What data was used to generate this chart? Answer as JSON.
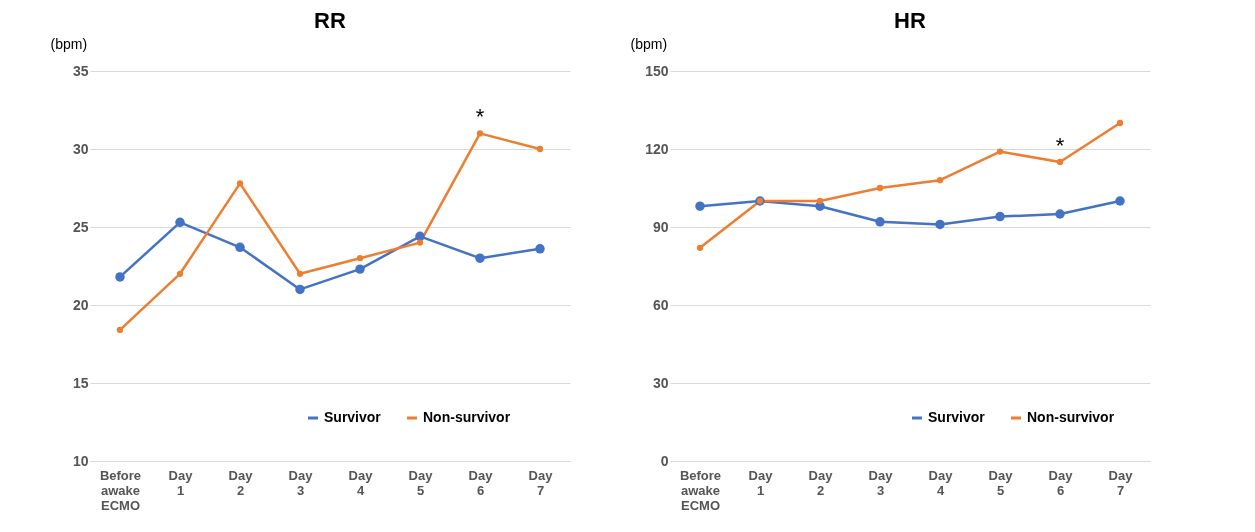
{
  "chart_data": [
    {
      "type": "line",
      "title": "RR",
      "ylabel": "(bpm)",
      "categories": [
        "Before awake ECMO",
        "Day 1",
        "Day 2",
        "Day 3",
        "Day 4",
        "Day 5",
        "Day 6",
        "Day 7"
      ],
      "series": [
        {
          "name": "Survivor",
          "color": "#4472c4",
          "values": [
            21.8,
            25.3,
            23.7,
            21.0,
            22.3,
            24.4,
            23.0,
            23.6
          ]
        },
        {
          "name": "Non-survivor",
          "color": "#ed7d31",
          "values": [
            18.4,
            22.0,
            27.8,
            22.0,
            23.0,
            24.0,
            31.0,
            30.0
          ]
        }
      ],
      "ylim": [
        10,
        35
      ],
      "yticks": [
        10,
        15,
        20,
        25,
        30,
        35
      ],
      "grid": "y",
      "legend": "bottom",
      "marker": "circle",
      "line_style": "solid",
      "annotations": [
        {
          "text": "*",
          "x": "Day 6",
          "y": 31.0
        }
      ]
    },
    {
      "type": "line",
      "title": "HR",
      "ylabel": "(bpm)",
      "categories": [
        "Before awake ECMO",
        "Day 1",
        "Day 2",
        "Day 3",
        "Day 4",
        "Day 5",
        "Day 6",
        "Day 7"
      ],
      "series": [
        {
          "name": "Survivor",
          "color": "#4472c4",
          "values": [
            98,
            100,
            98,
            92,
            91,
            94,
            95,
            100
          ]
        },
        {
          "name": "Non-survivor",
          "color": "#ed7d31",
          "values": [
            82,
            100,
            100,
            105,
            108,
            119,
            115,
            130
          ]
        }
      ],
      "ylim": [
        0,
        150
      ],
      "yticks": [
        0,
        30,
        60,
        90,
        120,
        150
      ],
      "grid": "y",
      "legend": "bottom right",
      "marker": "circle",
      "line_style": "solid",
      "annotations": [
        {
          "text": "*",
          "x": "Day 6",
          "y": 115
        }
      ]
    }
  ]
}
